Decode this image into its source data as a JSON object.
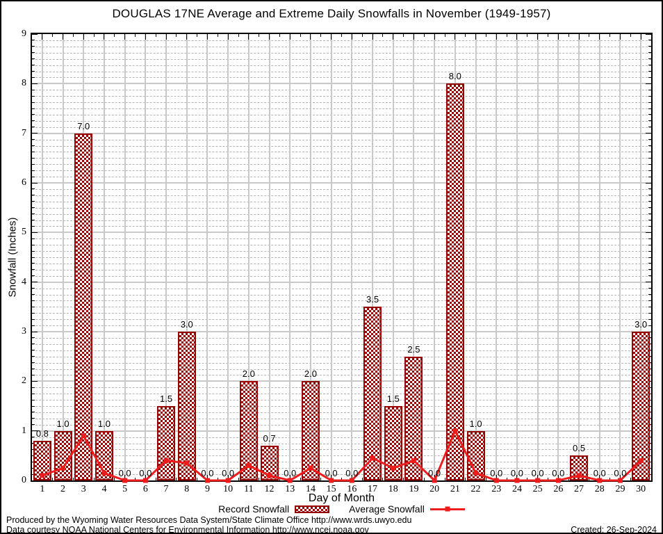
{
  "title": "DOUGLAS 17NE Average and Extreme Daily Snowfalls in November (1949-1957)",
  "y_axis": {
    "label": "Snowfall (Inches)",
    "min": 0,
    "max": 9,
    "major_step": 1,
    "minor_divisions": 8
  },
  "x_axis": {
    "label": "Day of Month",
    "min_day": 1,
    "max_day": 30
  },
  "legend": {
    "record_label": "Record Snowfall",
    "average_label": "Average Snowfall"
  },
  "footer": {
    "line1": "Produced by the Wyoming Water Resources Data System/State Climate Office http://www.wrds.uwyo.edu",
    "line2": "Data courtesy NOAA National Centers for Environmental Information http://www.ncei.noaa.gov",
    "created": "Created: 26-Sep-2024"
  },
  "colors": {
    "bar_maroon": "#990000",
    "line_red": "#ee1c1c",
    "grid_major": "#c9c9c9",
    "grid_minor": "#b4b4b4",
    "axis_black": "#000000"
  },
  "chart_data": {
    "type": "bar",
    "title": "DOUGLAS 17NE Average and Extreme Daily Snowfalls in November (1949-1957)",
    "xlabel": "Day of Month",
    "ylabel": "Snowfall (Inches)",
    "ylim": [
      0,
      9
    ],
    "grid": true,
    "legend_position": "bottom-center",
    "categories": [
      1,
      2,
      3,
      4,
      5,
      6,
      7,
      8,
      9,
      10,
      11,
      12,
      13,
      14,
      15,
      16,
      17,
      18,
      19,
      20,
      21,
      22,
      23,
      24,
      25,
      26,
      27,
      28,
      29,
      30
    ],
    "series": [
      {
        "name": "Record Snowfall",
        "type": "bar",
        "values": [
          0.8,
          1.0,
          7.0,
          1.0,
          0.0,
          0.0,
          1.5,
          3.0,
          0.0,
          0.0,
          2.0,
          0.7,
          0.0,
          2.0,
          0.0,
          0.0,
          3.5,
          1.5,
          2.5,
          0.0,
          8.0,
          1.0,
          0.0,
          0.0,
          0.0,
          0.0,
          0.5,
          0.0,
          0.0,
          3.0
        ],
        "data_labels": [
          "0.8",
          "1.0",
          "7.0",
          "1.0",
          "0.0",
          "0.0",
          "1.5",
          "3.0",
          "0.0",
          "0.0",
          "2.0",
          "0.7",
          "0.0",
          "2.0",
          "0.0",
          "0.0",
          "3.5",
          "1.5",
          "2.5",
          "0.0",
          "8.0",
          "1.0",
          "0.0",
          "0.0",
          "0.0",
          "0.0",
          "0.5",
          "0.0",
          "0.0",
          "3.0"
        ]
      },
      {
        "name": "Average Snowfall",
        "type": "line",
        "values": [
          0.1,
          0.25,
          0.9,
          0.15,
          0.0,
          0.0,
          0.4,
          0.35,
          0.0,
          0.0,
          0.3,
          0.1,
          0.0,
          0.25,
          0.0,
          0.0,
          0.45,
          0.25,
          0.4,
          0.0,
          1.0,
          0.15,
          0.0,
          0.0,
          0.0,
          0.0,
          0.1,
          0.0,
          0.0,
          0.4
        ]
      }
    ]
  }
}
